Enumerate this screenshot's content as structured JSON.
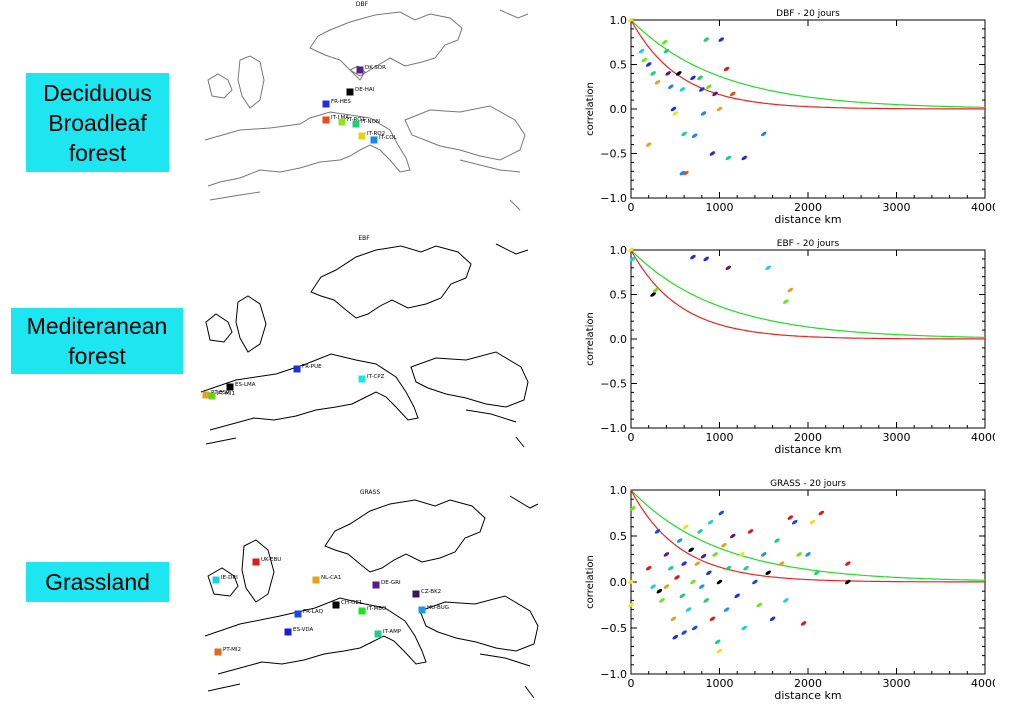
{
  "labels": {
    "dbf": "Deciduous\nBroadleaf\nforest",
    "ebf": "Mediteranean\nforest",
    "grass": "Grassland"
  },
  "maps": {
    "dbf": {
      "title": "DBF",
      "sites": [
        {
          "name": "DK-SOR",
          "color": "#5a1a8a"
        },
        {
          "name": "DE-HAI",
          "color": "#000000"
        },
        {
          "name": "FR-HES",
          "color": "#1a2fe0"
        },
        {
          "name": "IT-LMA",
          "color": "#f04a1a"
        },
        {
          "name": "IT-RO1",
          "color": "#8ae61a"
        },
        {
          "name": "IT-NON",
          "color": "#1ad070"
        },
        {
          "name": "IT-RO2",
          "color": "#e6d21a"
        },
        {
          "name": "IT-COL",
          "color": "#1a8ae6"
        }
      ]
    },
    "ebf": {
      "title": "EBF",
      "sites": [
        {
          "name": "FR-PUE",
          "color": "#1a2fe0"
        },
        {
          "name": "IT-CPZ",
          "color": "#1ae6e6"
        },
        {
          "name": "ES-LMA",
          "color": "#000000"
        },
        {
          "name": "PT-ESP",
          "color": "#e6a21a"
        },
        {
          "name": "PT-MI1",
          "color": "#6ad01a"
        }
      ]
    },
    "grass": {
      "title": "GRASS",
      "sites": [
        {
          "name": "UK-EBU",
          "color": "#e01a1a"
        },
        {
          "name": "IE-DRI",
          "color": "#1ad0e6"
        },
        {
          "name": "NL-CA1",
          "color": "#e6a21a"
        },
        {
          "name": "DE-GRI",
          "color": "#5a1a8a"
        },
        {
          "name": "CZ-BK2",
          "color": "#3a1a5a"
        },
        {
          "name": "CH-OE1",
          "color": "#000000"
        },
        {
          "name": "IT-MBO",
          "color": "#1ae61a"
        },
        {
          "name": "FR-LAQ",
          "color": "#1a4ae0"
        },
        {
          "name": "HU-BUG",
          "color": "#1a9ae6"
        },
        {
          "name": "ES-VDA",
          "color": "#1a1ae0"
        },
        {
          "name": "IT-AMP",
          "color": "#1ad08a"
        },
        {
          "name": "PT-MI2",
          "color": "#e66a1a"
        }
      ]
    }
  },
  "chart_data": [
    {
      "type": "scatter",
      "title": "DBF - 20 jours",
      "xlabel": "distance km",
      "ylabel": "correlation",
      "xlim": [
        0,
        4000
      ],
      "ylim": [
        -1.0,
        1.0
      ],
      "xticks": [
        0,
        1000,
        2000,
        3000,
        4000
      ],
      "yticks": [
        -1.0,
        -0.5,
        0.0,
        0.5,
        1.0
      ],
      "curves": [
        {
          "color": "#22dd22",
          "scale": 1000
        },
        {
          "color": "#ee2222",
          "scale": 550
        }
      ],
      "points": [
        [
          0,
          1.0,
          "#e6e61a"
        ],
        [
          120,
          0.65,
          "#1ad0e6"
        ],
        [
          150,
          0.55,
          "#6ae61a"
        ],
        [
          200,
          0.5,
          "#1a2fe0"
        ],
        [
          250,
          0.4,
          "#1ad08a"
        ],
        [
          300,
          0.3,
          "#e6a21a"
        ],
        [
          380,
          0.75,
          "#6ae61a"
        ],
        [
          400,
          0.65,
          "#1ad070"
        ],
        [
          420,
          0.4,
          "#5a1a8a"
        ],
        [
          450,
          0.25,
          "#1a8ae6"
        ],
        [
          480,
          0.0,
          "#1a2fe0"
        ],
        [
          500,
          -0.05,
          "#e6e61a"
        ],
        [
          540,
          0.4,
          "#000000"
        ],
        [
          580,
          0.22,
          "#1ad0e6"
        ],
        [
          600,
          -0.28,
          "#1ad08a"
        ],
        [
          620,
          -0.72,
          "#f04a1a"
        ],
        [
          700,
          0.35,
          "#1a2fe0"
        ],
        [
          720,
          -0.3,
          "#1a8ae6"
        ],
        [
          780,
          0.35,
          "#1ad070"
        ],
        [
          800,
          0.22,
          "#1a2fe0"
        ],
        [
          820,
          -0.05,
          "#1a8ae6"
        ],
        [
          850,
          0.78,
          "#1ad070"
        ],
        [
          880,
          0.25,
          "#6ae61a"
        ],
        [
          920,
          -0.5,
          "#1a2fe0"
        ],
        [
          950,
          0.17,
          "#5a1a8a"
        ],
        [
          1000,
          0.0,
          "#e6a21a"
        ],
        [
          1020,
          0.78,
          "#1a2fe0"
        ],
        [
          1080,
          0.45,
          "#e01a1a"
        ],
        [
          1100,
          -0.55,
          "#1ad08a"
        ],
        [
          1150,
          0.17,
          "#f04a1a"
        ],
        [
          1280,
          -0.55,
          "#1a2fe0"
        ],
        [
          1500,
          -0.28,
          "#1a8ae6"
        ],
        [
          200,
          -0.4,
          "#e6a21a"
        ],
        [
          580,
          -0.72,
          "#1a8ae6"
        ]
      ]
    },
    {
      "type": "scatter",
      "title": "EBF - 20 jours",
      "xlabel": "distance km",
      "ylabel": "correlation",
      "xlim": [
        0,
        4000
      ],
      "ylim": [
        -1.0,
        1.0
      ],
      "xticks": [
        0,
        1000,
        2000,
        3000,
        4000
      ],
      "yticks": [
        -1.0,
        -0.5,
        0.0,
        0.5,
        1.0
      ],
      "curves": [
        {
          "color": "#22dd22",
          "scale": 1000
        },
        {
          "color": "#ee2222",
          "scale": 550
        }
      ],
      "points": [
        [
          0,
          1.0,
          "#e6e61a"
        ],
        [
          20,
          0.9,
          "#1ad0e6"
        ],
        [
          250,
          0.5,
          "#000000"
        ],
        [
          280,
          0.55,
          "#6ae61a"
        ],
        [
          700,
          0.92,
          "#1a2fe0"
        ],
        [
          850,
          0.9,
          "#1a2fe0"
        ],
        [
          1100,
          0.8,
          "#5a1a8a"
        ],
        [
          1550,
          0.8,
          "#1ad0e6"
        ],
        [
          1750,
          0.42,
          "#6ae61a"
        ],
        [
          1800,
          0.55,
          "#e6a21a"
        ]
      ]
    },
    {
      "type": "scatter",
      "title": "GRASS - 20 jours",
      "xlabel": "distance km",
      "ylabel": "correlation",
      "xlim": [
        0,
        4000
      ],
      "ylim": [
        -1.0,
        1.0
      ],
      "xticks": [
        0,
        1000,
        2000,
        3000,
        4000
      ],
      "yticks": [
        -1.0,
        -0.5,
        0.0,
        0.5,
        1.0
      ],
      "curves": [
        {
          "color": "#22dd22",
          "scale": 1000
        },
        {
          "color": "#ee2222",
          "scale": 550
        }
      ],
      "points": [
        [
          0,
          0.0,
          "#e6e61a"
        ],
        [
          0,
          -0.25,
          "#e6e61a"
        ],
        [
          20,
          0.8,
          "#6ae61a"
        ],
        [
          200,
          0.15,
          "#e01a1a"
        ],
        [
          250,
          -0.05,
          "#1ad0e6"
        ],
        [
          300,
          0.55,
          "#1a4ae0"
        ],
        [
          320,
          -0.1,
          "#000000"
        ],
        [
          350,
          -0.2,
          "#6ae61a"
        ],
        [
          400,
          0.3,
          "#5a1a8a"
        ],
        [
          450,
          0.15,
          "#1ad08a"
        ],
        [
          480,
          -0.4,
          "#e6a21a"
        ],
        [
          500,
          -0.6,
          "#1a2fe0"
        ],
        [
          520,
          0.05,
          "#e01a1a"
        ],
        [
          550,
          0.45,
          "#1a9ae6"
        ],
        [
          580,
          -0.15,
          "#1ad070"
        ],
        [
          600,
          0.2,
          "#1a2fe0"
        ],
        [
          620,
          0.6,
          "#e6e61a"
        ],
        [
          650,
          -0.3,
          "#1ad0e6"
        ],
        [
          680,
          0.35,
          "#000000"
        ],
        [
          700,
          0.0,
          "#6ae61a"
        ],
        [
          720,
          -0.5,
          "#1a4ae0"
        ],
        [
          750,
          0.2,
          "#e6a21a"
        ],
        [
          780,
          0.55,
          "#1ad08a"
        ],
        [
          800,
          -0.05,
          "#1a9ae6"
        ],
        [
          820,
          0.28,
          "#5a1a8a"
        ],
        [
          850,
          -0.2,
          "#1ad070"
        ],
        [
          880,
          0.1,
          "#1a2fe0"
        ],
        [
          900,
          0.65,
          "#1ad0e6"
        ],
        [
          920,
          -0.4,
          "#e01a1a"
        ],
        [
          950,
          0.3,
          "#6ae61a"
        ],
        [
          980,
          -0.65,
          "#1ad08a"
        ],
        [
          1000,
          0.0,
          "#000000"
        ],
        [
          1020,
          0.75,
          "#1a4ae0"
        ],
        [
          1050,
          0.4,
          "#e6a21a"
        ],
        [
          1080,
          -0.3,
          "#1a9ae6"
        ],
        [
          1100,
          0.15,
          "#1ad070"
        ],
        [
          1150,
          0.5,
          "#5a1a8a"
        ],
        [
          1200,
          -0.15,
          "#1a2fe0"
        ],
        [
          1250,
          0.3,
          "#e6e61a"
        ],
        [
          1280,
          -0.5,
          "#1ad0e6"
        ],
        [
          1300,
          0.15,
          "#1ad08a"
        ],
        [
          1350,
          0.55,
          "#e01a1a"
        ],
        [
          1400,
          0.0,
          "#1a4ae0"
        ],
        [
          1450,
          -0.25,
          "#6ae61a"
        ],
        [
          1500,
          0.3,
          "#1a9ae6"
        ],
        [
          1550,
          0.1,
          "#000000"
        ],
        [
          1600,
          -0.4,
          "#1a2fe0"
        ],
        [
          1650,
          0.45,
          "#1ad070"
        ],
        [
          1700,
          0.2,
          "#e6a21a"
        ],
        [
          1750,
          -0.2,
          "#1ad0e6"
        ],
        [
          1800,
          0.7,
          "#e01a1a"
        ],
        [
          1850,
          0.65,
          "#1a4ae0"
        ],
        [
          1900,
          0.3,
          "#6ae61a"
        ],
        [
          1950,
          -0.45,
          "#e01a1a"
        ],
        [
          2000,
          0.3,
          "#1a9ae6"
        ],
        [
          2050,
          0.65,
          "#e6e61a"
        ],
        [
          2100,
          0.1,
          "#1ad08a"
        ],
        [
          2150,
          0.75,
          "#e01a1a"
        ],
        [
          2450,
          0.2,
          "#e01a1a"
        ],
        [
          2450,
          0.0,
          "#000000"
        ],
        [
          1000,
          -0.75,
          "#e6e61a"
        ],
        [
          600,
          -0.55,
          "#1a4ae0"
        ],
        [
          400,
          -0.05,
          "#e6a21a"
        ]
      ]
    }
  ]
}
